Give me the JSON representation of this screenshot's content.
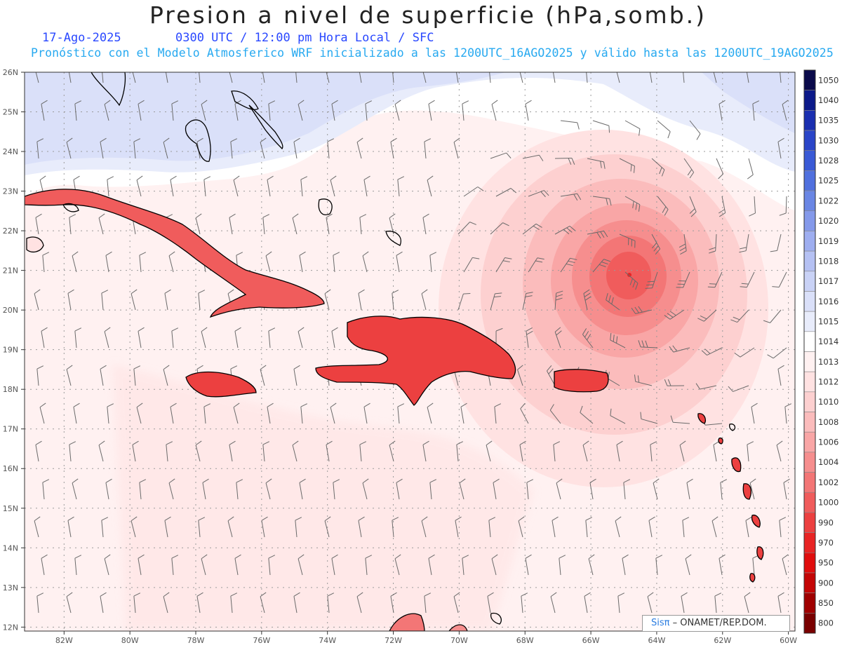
{
  "header": {
    "title": "Presion a nivel de superficie (hPa,somb.)",
    "date": "17-Ago-2025",
    "time_label": "0300 UTC / 12:00 pm Hora Local / SFC",
    "model_line": "Pronóstico con el Modelo Atmosferico WRF inicializado a las 1200UTC_16AGO2025 y válido hasta las 1200UTC_19AGO2025"
  },
  "map": {
    "lat_labels": [
      "26N",
      "25N",
      "24N",
      "23N",
      "22N",
      "21N",
      "20N",
      "19N",
      "18N",
      "17N",
      "16N",
      "15N",
      "14N",
      "13N",
      "12N"
    ],
    "lon_labels": [
      "82W",
      "80W",
      "78W",
      "76W",
      "74W",
      "72W",
      "70W",
      "68W",
      "66W",
      "64W",
      "62W",
      "60W"
    ],
    "lon_range": [
      -83.2,
      -59.8
    ],
    "lat_range": [
      11.9,
      26.0
    ],
    "low_pressure_center": {
      "lat": 20.8,
      "lon": -65.0
    }
  },
  "colorbar": {
    "levels": [
      "1050",
      "1040",
      "1035",
      "1030",
      "1028",
      "1025",
      "1022",
      "1020",
      "1019",
      "1018",
      "1017",
      "1016",
      "1015",
      "1014",
      "1013",
      "1012",
      "1010",
      "1008",
      "1006",
      "1004",
      "1002",
      "1000",
      "990",
      "970",
      "950",
      "900",
      "850",
      "800"
    ],
    "colors": [
      "#0a0a4a",
      "#0c1a8a",
      "#1a2fb0",
      "#2a45c8",
      "#3a5ad6",
      "#5070de",
      "#6a86e4",
      "#8499ea",
      "#9eaef0",
      "#b5c1f3",
      "#c9d2f6",
      "#dae0f9",
      "#e8ecfb",
      "#ffffff",
      "#fff1f1",
      "#ffe2e2",
      "#fdd0d0",
      "#fbbcbc",
      "#f9a6a6",
      "#f68e8e",
      "#f37676",
      "#f05c5c",
      "#ec4040",
      "#e82424",
      "#e00d0d",
      "#c40606",
      "#a00000",
      "#7a0000"
    ]
  },
  "credit": {
    "brand": "Sisπ",
    "text": "– ONAMET/REP.DOM."
  }
}
